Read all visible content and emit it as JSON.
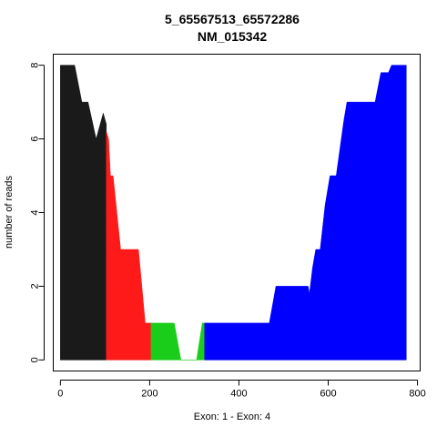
{
  "chart_data": {
    "type": "area",
    "title": "5_65567513_65572286",
    "subtitle": "NM_015342",
    "xlabel": "Exon: 1 - Exon: 4",
    "ylabel": "number of reads",
    "xlim": [
      -16,
      806
    ],
    "ylim": [
      -0.3,
      8.3
    ],
    "xticks": [
      0,
      200,
      400,
      600,
      800
    ],
    "yticks": [
      0,
      2,
      4,
      6,
      8
    ],
    "grid": false,
    "series": [
      {
        "color": "#1a1a1a",
        "points": [
          [
            0,
            0
          ],
          [
            0,
            8
          ],
          [
            32,
            8
          ],
          [
            48,
            7
          ],
          [
            62,
            7
          ],
          [
            80,
            6
          ],
          [
            96,
            6.7
          ],
          [
            103,
            6.4
          ],
          [
            103,
            0
          ]
        ]
      },
      {
        "color": "#ff1a1a",
        "points": [
          [
            103,
            0
          ],
          [
            103,
            6.2
          ],
          [
            108,
            6
          ],
          [
            112,
            5
          ],
          [
            118,
            5
          ],
          [
            135,
            3
          ],
          [
            175,
            3
          ],
          [
            190,
            1
          ],
          [
            203,
            1
          ],
          [
            203,
            0
          ]
        ]
      },
      {
        "color": "#1acd1a",
        "points": [
          [
            203,
            0
          ],
          [
            203,
            1
          ],
          [
            255,
            1
          ],
          [
            270,
            0
          ],
          [
            305,
            0
          ],
          [
            318,
            1
          ],
          [
            323,
            1
          ],
          [
            323,
            0
          ]
        ]
      },
      {
        "color": "#0000ff",
        "points": [
          [
            323,
            0
          ],
          [
            323,
            1
          ],
          [
            468,
            1
          ],
          [
            483,
            2
          ],
          [
            555,
            2
          ],
          [
            558,
            1.8
          ],
          [
            565,
            2.5
          ],
          [
            572,
            3
          ],
          [
            582,
            3
          ],
          [
            593,
            4.2
          ],
          [
            604,
            5
          ],
          [
            618,
            5
          ],
          [
            635,
            6.5
          ],
          [
            642,
            7
          ],
          [
            705,
            7
          ],
          [
            718,
            7.8
          ],
          [
            735,
            7.8
          ],
          [
            742,
            8
          ],
          [
            775,
            8
          ],
          [
            775,
            0
          ]
        ]
      }
    ]
  }
}
